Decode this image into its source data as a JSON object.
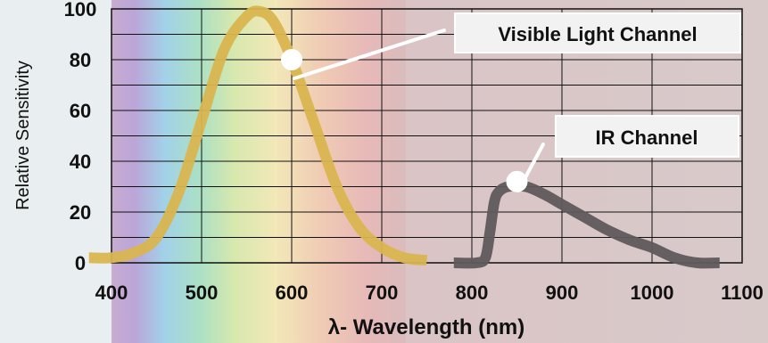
{
  "chart_data": {
    "type": "line",
    "xlabel": "λ- Wavelength (nm)",
    "ylabel": "Relative Sensitivity",
    "xlim": [
      400,
      1100
    ],
    "ylim": [
      0,
      100
    ],
    "x_ticks": [
      "400",
      "500",
      "600",
      "700",
      "800",
      "900",
      "1000",
      "1100"
    ],
    "y_ticks": [
      "0",
      "20",
      "40",
      "60",
      "80",
      "100"
    ],
    "grid": true,
    "background": "visible-spectrum gradient (violet to red) then muted infrared tint",
    "series": [
      {
        "name": "Visible Light Channel",
        "color": "#d9b54f",
        "points": [
          [
            375,
            2
          ],
          [
            400,
            2
          ],
          [
            425,
            4
          ],
          [
            450,
            10
          ],
          [
            475,
            28
          ],
          [
            500,
            56
          ],
          [
            525,
            84
          ],
          [
            550,
            97
          ],
          [
            565,
            99
          ],
          [
            580,
            95
          ],
          [
            600,
            80
          ],
          [
            625,
            55
          ],
          [
            650,
            30
          ],
          [
            675,
            14
          ],
          [
            700,
            6
          ],
          [
            725,
            2
          ],
          [
            750,
            1
          ]
        ]
      },
      {
        "name": "IR Channel",
        "color": "#5f5a5c",
        "points": [
          [
            780,
            0
          ],
          [
            805,
            0
          ],
          [
            815,
            2
          ],
          [
            820,
            12
          ],
          [
            825,
            24
          ],
          [
            830,
            28
          ],
          [
            840,
            30
          ],
          [
            860,
            30
          ],
          [
            880,
            27
          ],
          [
            900,
            23
          ],
          [
            925,
            18
          ],
          [
            950,
            13
          ],
          [
            975,
            9
          ],
          [
            1000,
            6
          ],
          [
            1025,
            2
          ],
          [
            1050,
            0
          ],
          [
            1075,
            0
          ]
        ]
      }
    ],
    "annotations": [
      {
        "text": "Visible Light Channel",
        "x": 600,
        "y": 80,
        "color": "#d9b54f"
      },
      {
        "text": "IR Channel",
        "x": 850,
        "y": 32,
        "color": "#5f5a5c"
      }
    ]
  }
}
